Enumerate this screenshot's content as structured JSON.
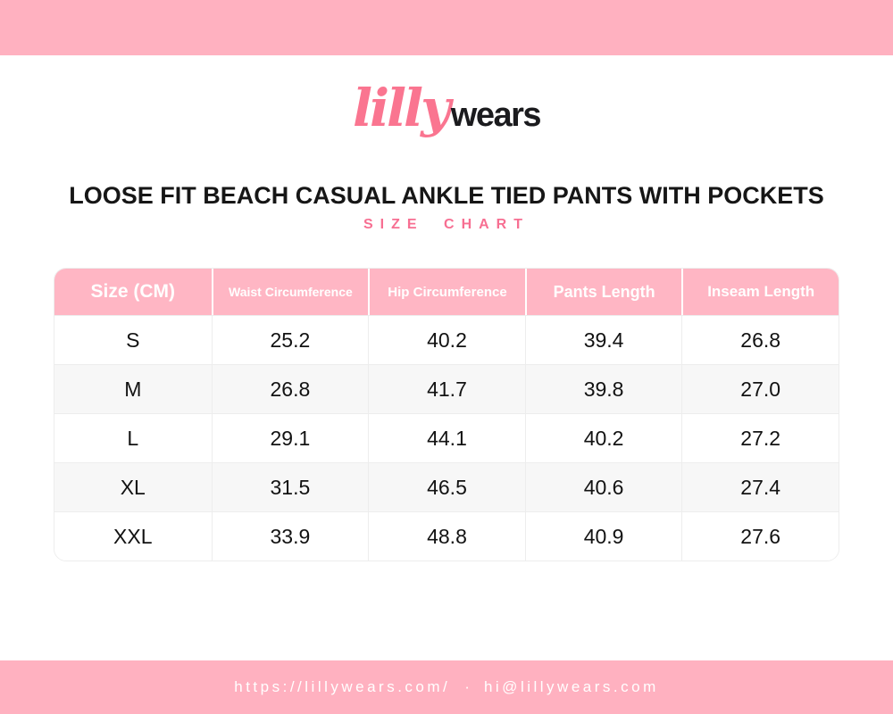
{
  "brand": {
    "logo_script": "lilly",
    "logo_bold": "wears"
  },
  "title": "LOOSE FIT BEACH CASUAL ANKLE TIED PANTS WITH POCKETS",
  "subtitle": "SIZE CHART",
  "table": {
    "columns": [
      "Size (CM)",
      "Waist Circumference",
      "Hip Circumference",
      "Pants Length",
      "Inseam Length"
    ],
    "rows": [
      [
        "S",
        "25.2",
        "40.2",
        "39.4",
        "26.8"
      ],
      [
        "M",
        "26.8",
        "41.7",
        "39.8",
        "27.0"
      ],
      [
        "L",
        "29.1",
        "44.1",
        "40.2",
        "27.2"
      ],
      [
        "XL",
        "31.5",
        "46.5",
        "40.6",
        "27.4"
      ],
      [
        "XXL",
        "33.9",
        "48.8",
        "40.9",
        "27.6"
      ]
    ]
  },
  "footer": {
    "url": "https://lillywears.com/",
    "separator": "·",
    "email": "hi@lillywears.com"
  },
  "colors": {
    "banner_pink": "#ffb1c0",
    "table_header_pink": "#ffb6c4",
    "accent_pink": "#f76f92",
    "logo_pink": "#fa7590",
    "text_black": "#161616",
    "row_alt_gray": "#f7f7f7",
    "grid_line": "#ededed"
  }
}
